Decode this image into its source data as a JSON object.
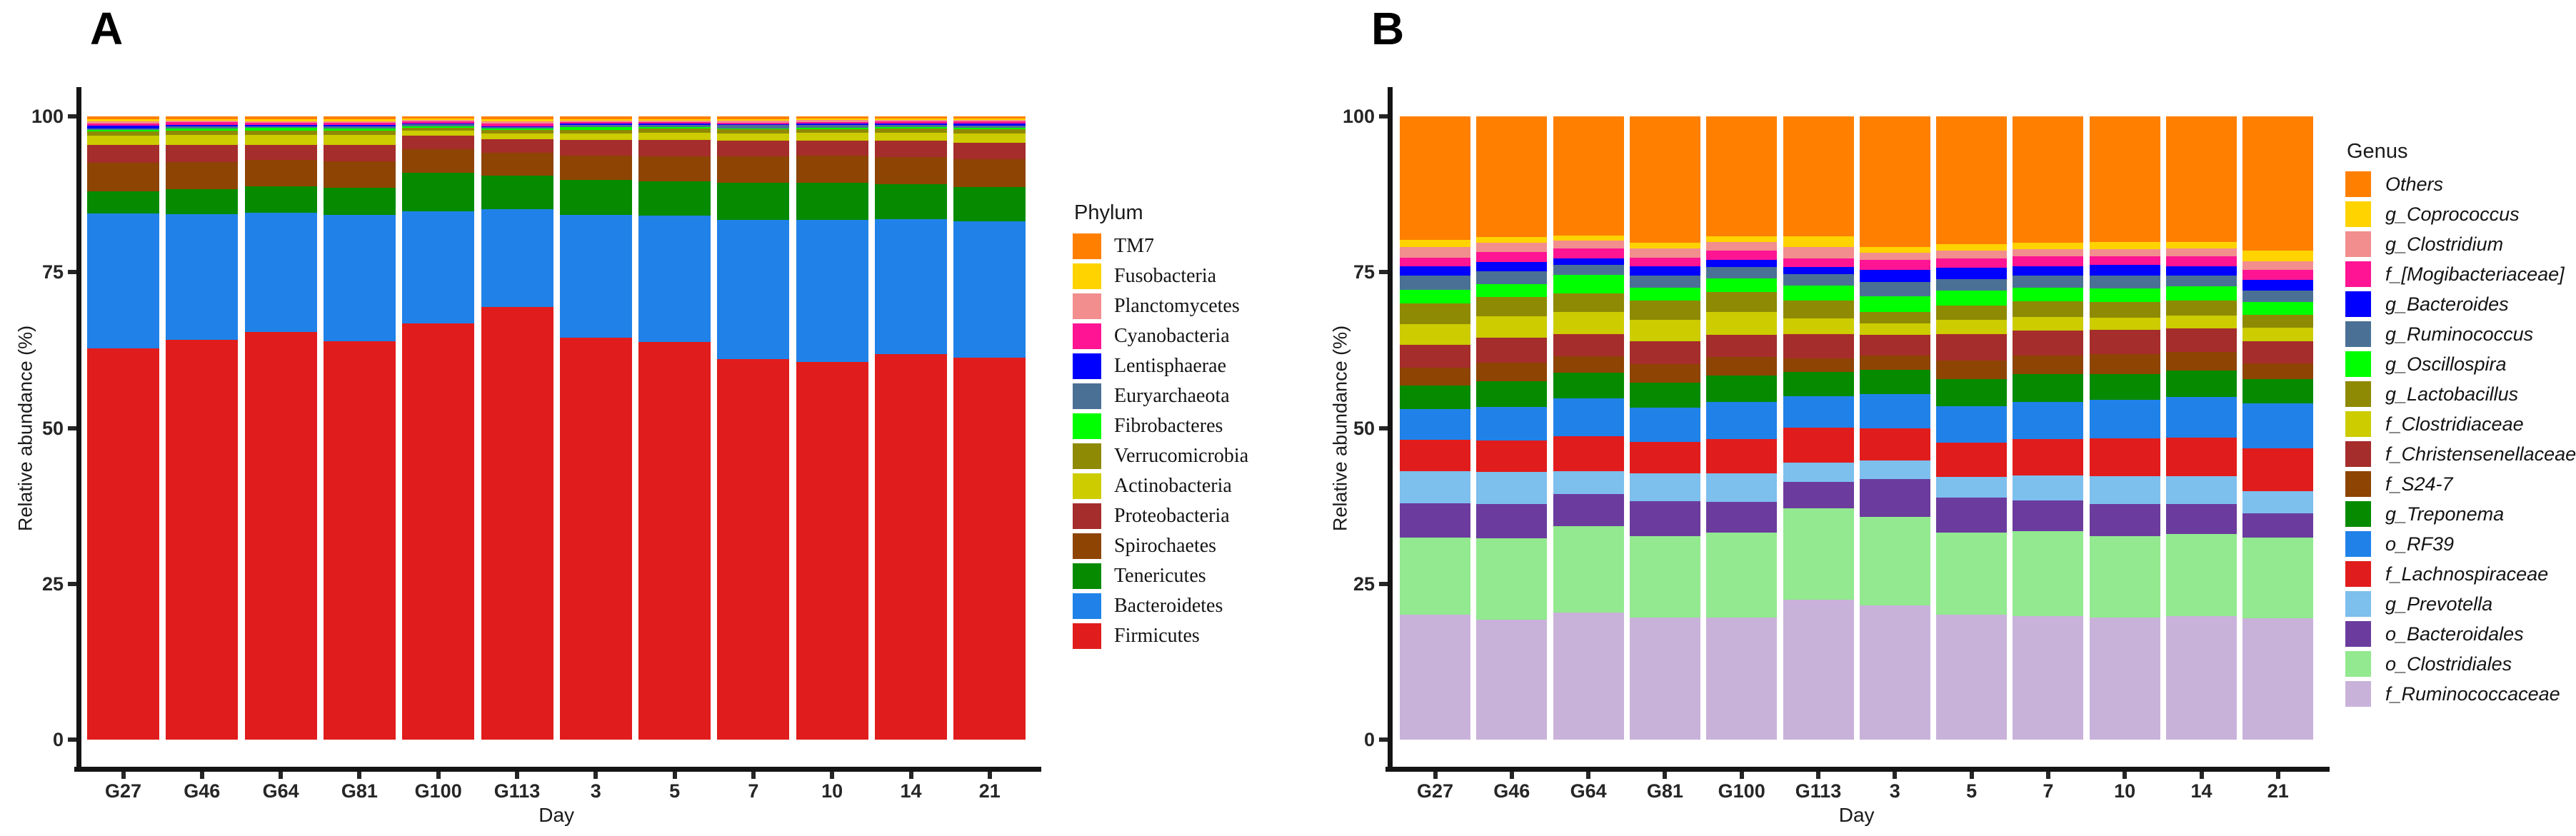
{
  "chart_data": [
    {
      "id": "panel_a",
      "type": "bar",
      "stacked": true,
      "panel_label": "A",
      "xlabel": "Day",
      "ylabel": "Relative abundance (%)",
      "legend_title": "Phylum",
      "legend_position": "right",
      "grid": false,
      "ylim": [
        0,
        100
      ],
      "yticks": [
        0,
        25,
        50,
        75,
        100
      ],
      "categories": [
        "G27",
        "G46",
        "G64",
        "G81",
        "G100",
        "G113",
        "3",
        "5",
        "7",
        "10",
        "14",
        "21"
      ],
      "series": [
        {
          "name": "Firmicutes",
          "color": "#E11C1C",
          "values": [
            63.0,
            64.3,
            65.6,
            64.1,
            66.9,
            69.5,
            64.6,
            64.0,
            61.2,
            60.8,
            62.0,
            61.5
          ]
        },
        {
          "name": "Bacteroidetes",
          "color": "#2082E8",
          "values": [
            21.7,
            20.2,
            19.2,
            20.3,
            18.0,
            15.7,
            19.8,
            20.3,
            22.4,
            22.8,
            21.7,
            21.9
          ]
        },
        {
          "name": "Tenericutes",
          "color": "#068B00",
          "values": [
            3.6,
            4.0,
            4.3,
            4.4,
            6.1,
            5.4,
            5.6,
            5.5,
            5.9,
            6.0,
            5.6,
            5.5
          ]
        },
        {
          "name": "Spirochaetes",
          "color": "#8E4403",
          "values": [
            4.6,
            4.4,
            4.2,
            4.3,
            3.8,
            3.6,
            3.9,
            4.1,
            4.3,
            4.3,
            4.4,
            4.5
          ]
        },
        {
          "name": "Proteobacteria",
          "color": "#A52D2B",
          "values": [
            2.8,
            2.7,
            2.5,
            2.6,
            2.2,
            2.2,
            2.5,
            2.6,
            2.5,
            2.5,
            2.6,
            2.7
          ]
        },
        {
          "name": "Actinobacteria",
          "color": "#CCCC00",
          "values": [
            1.6,
            1.7,
            1.6,
            1.6,
            0.8,
            1.0,
            1.1,
            1.2,
            1.2,
            1.2,
            1.3,
            1.4
          ]
        },
        {
          "name": "Verrucomicrobia",
          "color": "#8E8A04",
          "values": [
            0.6,
            0.7,
            0.6,
            0.7,
            0.5,
            0.5,
            0.5,
            0.6,
            0.6,
            0.6,
            0.7,
            0.7
          ]
        },
        {
          "name": "Fibrobacteres",
          "color": "#00FF00",
          "values": [
            0.3,
            0.35,
            0.5,
            0.35,
            0.25,
            0.2,
            0.5,
            0.3,
            0.2,
            0.2,
            0.25,
            0.3
          ]
        },
        {
          "name": "Euryarchaeota",
          "color": "#4A7195",
          "values": [
            0.25,
            0.25,
            0.25,
            0.3,
            0.3,
            0.25,
            0.3,
            0.3,
            0.5,
            0.5,
            0.35,
            0.35
          ]
        },
        {
          "name": "Lentisphaerae",
          "color": "#0000FF",
          "values": [
            0.35,
            0.3,
            0.25,
            0.25,
            0.15,
            0.2,
            0.2,
            0.2,
            0.15,
            0.15,
            0.2,
            0.35
          ]
        },
        {
          "name": "Cyanobacteria",
          "color": "#FF1493",
          "values": [
            0.45,
            0.4,
            0.35,
            0.35,
            0.3,
            0.45,
            0.3,
            0.3,
            0.25,
            0.25,
            0.35,
            0.3
          ]
        },
        {
          "name": "Planctomycetes",
          "color": "#F28E8E",
          "values": [
            0.3,
            0.25,
            0.25,
            0.25,
            0.2,
            0.35,
            0.2,
            0.2,
            0.3,
            0.35,
            0.2,
            0.2
          ]
        },
        {
          "name": "Fusobacteria",
          "color": "#FFD300",
          "values": [
            0.3,
            0.25,
            0.25,
            0.3,
            0.2,
            0.25,
            0.2,
            0.2,
            0.2,
            0.2,
            0.2,
            0.2
          ]
        },
        {
          "name": "TM7",
          "color": "#FF8000",
          "values": [
            0.5,
            0.45,
            0.5,
            0.5,
            0.4,
            0.5,
            0.5,
            0.5,
            0.5,
            0.4,
            0.4,
            0.4
          ]
        }
      ]
    },
    {
      "id": "panel_b",
      "type": "bar",
      "stacked": true,
      "panel_label": "B",
      "xlabel": "Day",
      "ylabel": "Relative abundance (%)",
      "legend_title": "Genus",
      "legend_position": "right",
      "grid": false,
      "ylim": [
        0,
        100
      ],
      "yticks": [
        0,
        25,
        50,
        75,
        100
      ],
      "categories": [
        "G27",
        "G46",
        "G64",
        "G81",
        "G100",
        "G113",
        "3",
        "5",
        "7",
        "10",
        "14",
        "21"
      ],
      "series": [
        {
          "name": "f_Ruminococcaceae",
          "color": "#C9B2DA",
          "values": [
            20.0,
            19.0,
            20.0,
            19.6,
            19.6,
            22.5,
            21.5,
            20.0,
            19.8,
            19.6,
            19.8,
            19.5
          ]
        },
        {
          "name": "o_Clostridiales",
          "color": "#92E98F",
          "values": [
            12.4,
            13.0,
            13.6,
            13.1,
            13.6,
            14.6,
            14.2,
            13.2,
            13.6,
            13.0,
            13.2,
            12.9
          ]
        },
        {
          "name": "o_Bacteroidales",
          "color": "#6B3C9E",
          "values": [
            5.5,
            5.4,
            5.0,
            5.5,
            5.0,
            4.2,
            6.1,
            5.6,
            5.0,
            5.2,
            4.8,
            3.9
          ]
        },
        {
          "name": "g_Prevotella",
          "color": "#7DBFED",
          "values": [
            5.2,
            5.1,
            3.6,
            4.5,
            4.5,
            3.2,
            3.0,
            3.4,
            4.0,
            4.5,
            4.5,
            3.6
          ]
        },
        {
          "name": "f_Lachnospiraceae",
          "color": "#E11C1C",
          "values": [
            5.0,
            5.0,
            5.5,
            5.1,
            5.5,
            5.6,
            5.2,
            5.5,
            5.8,
            6.0,
            6.2,
            6.8
          ]
        },
        {
          "name": "o_RF39",
          "color": "#2082E8",
          "values": [
            4.9,
            5.4,
            6.0,
            5.5,
            6.0,
            5.0,
            5.4,
            5.8,
            6.0,
            6.2,
            6.5,
            7.2
          ]
        },
        {
          "name": "g_Treponema",
          "color": "#068B00",
          "values": [
            3.8,
            4.0,
            4.0,
            4.0,
            4.2,
            3.9,
            3.9,
            4.4,
            4.4,
            4.2,
            4.2,
            4.0
          ]
        },
        {
          "name": "f_S24-7",
          "color": "#8E4403",
          "values": [
            2.9,
            3.0,
            2.6,
            3.0,
            3.0,
            2.2,
            2.3,
            2.9,
            3.0,
            3.2,
            3.0,
            2.5
          ]
        },
        {
          "name": "f_Christensenellaceae",
          "color": "#A52D2B",
          "values": [
            3.7,
            4.0,
            3.5,
            3.6,
            3.5,
            3.9,
            3.4,
            4.3,
            4.0,
            3.8,
            3.8,
            3.5
          ]
        },
        {
          "name": "f_Clostridiaceae",
          "color": "#CCCC00",
          "values": [
            3.3,
            3.4,
            3.4,
            3.5,
            3.7,
            2.5,
            1.8,
            2.2,
            2.2,
            2.0,
            2.0,
            2.2
          ]
        },
        {
          "name": "g_Lactobacillus",
          "color": "#8E8A04",
          "values": [
            3.3,
            3.0,
            3.0,
            3.0,
            3.2,
            2.8,
            1.8,
            2.4,
            2.5,
            2.5,
            2.5,
            2.1
          ]
        },
        {
          "name": "g_Oscillospira",
          "color": "#00FF00",
          "values": [
            2.2,
            2.1,
            2.9,
            2.1,
            2.2,
            2.5,
            2.5,
            2.4,
            2.2,
            2.2,
            2.2,
            2.0
          ]
        },
        {
          "name": "g_Ruminococcus",
          "color": "#4A7195",
          "values": [
            2.2,
            2.0,
            1.5,
            2.0,
            1.8,
            1.8,
            2.3,
            1.8,
            2.0,
            2.0,
            1.8,
            1.8
          ]
        },
        {
          "name": "g_Bacteroides",
          "color": "#0000FF",
          "values": [
            1.5,
            1.5,
            1.1,
            1.5,
            1.2,
            1.1,
            2.0,
            1.8,
            1.5,
            1.8,
            1.5,
            1.8
          ]
        },
        {
          "name": "f_[Mogibacteriaceae]",
          "color": "#FF1493",
          "values": [
            1.4,
            1.5,
            1.5,
            1.3,
            1.5,
            1.4,
            1.6,
            1.5,
            1.5,
            1.3,
            1.5,
            1.6
          ]
        },
        {
          "name": "g_Clostridium",
          "color": "#F28E8E",
          "values": [
            1.7,
            1.5,
            1.3,
            1.5,
            1.3,
            1.8,
            1.1,
            1.3,
            1.2,
            1.2,
            1.3,
            1.4
          ]
        },
        {
          "name": "g_Coprococcus",
          "color": "#FFD300",
          "values": [
            1.2,
            0.9,
            0.8,
            0.9,
            0.9,
            1.8,
            0.9,
            1.0,
            1.0,
            1.1,
            1.0,
            1.7
          ]
        },
        {
          "name": "Others",
          "color": "#FF8000",
          "values": [
            19.8,
            19.2,
            18.7,
            20.3,
            19.3,
            19.2,
            21.0,
            20.5,
            20.3,
            20.2,
            20.2,
            21.5
          ]
        }
      ]
    }
  ]
}
